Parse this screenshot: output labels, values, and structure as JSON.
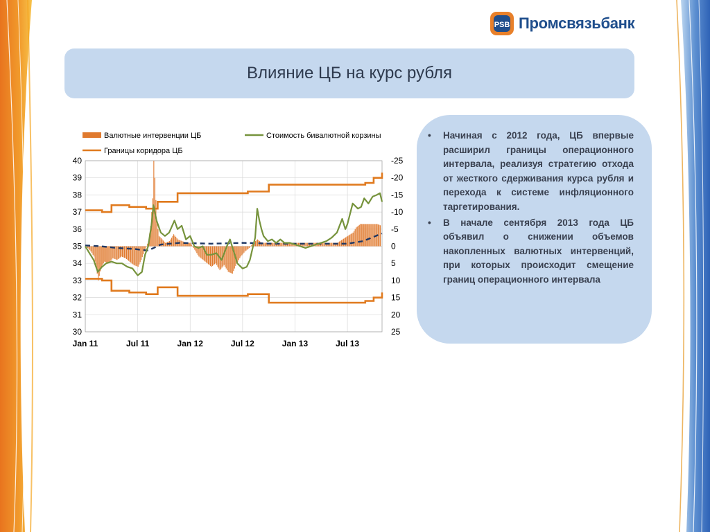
{
  "header": {
    "logo_text": "Промсвязьбанк",
    "logo_icon": "psb-logo-icon",
    "title": "Влияние ЦБ на курс рубля"
  },
  "colors": {
    "title_bg": "#c5d8ee",
    "brand_blue": "#1f4e8c",
    "brand_orange": "#e8802a",
    "interventions": "#e07a2e",
    "basket": "#76933c",
    "corridor": "#e07a1e",
    "center_line": "#1f3864"
  },
  "bullets": [
    "Начиная с 2012 года, ЦБ впервые расширил границы операционного интервала, реализуя стратегию отхода от жесткого сдерживания курса рубля и перехода к системе инфляционного таргетирования.",
    "В начале сентября 2013 года ЦБ объявил о снижении объемов накопленных валютных интервенций, при которых происходит смещение границ операционного интервала"
  ],
  "chart_data": {
    "type": "line",
    "legend": [
      "Валютные интервенции ЦБ",
      "Стоимость бивалютной корзины",
      "Границы коридора ЦБ"
    ],
    "legend_placement": "top",
    "x_tick_labels": [
      "Jan 11",
      "Jul 11",
      "Jan 12",
      "Jul 12",
      "Jan 13",
      "Jul 13"
    ],
    "y_left": {
      "ticks": [
        "40",
        "39",
        "38",
        "37",
        "36",
        "35",
        "34",
        "33",
        "32",
        "31",
        "30"
      ],
      "range": [
        30,
        40
      ]
    },
    "y_right": {
      "ticks": [
        "-25",
        "-20",
        "-15",
        "-10",
        "-5",
        "0",
        "5",
        "10",
        "15",
        "20",
        "25"
      ],
      "range": [
        25,
        -25
      ],
      "inverted": true
    },
    "grid": true,
    "x_range": [
      2011.0,
      2013.83
    ],
    "series": [
      {
        "name": "Стоимость бивалютной корзины",
        "kind": "line",
        "axis": "left",
        "points": [
          [
            2011.0,
            35.0
          ],
          [
            2011.04,
            34.6
          ],
          [
            2011.08,
            34.2
          ],
          [
            2011.12,
            33.5
          ],
          [
            2011.16,
            33.8
          ],
          [
            2011.2,
            34.0
          ],
          [
            2011.25,
            34.1
          ],
          [
            2011.3,
            34.0
          ],
          [
            2011.35,
            34.0
          ],
          [
            2011.4,
            33.8
          ],
          [
            2011.45,
            33.7
          ],
          [
            2011.5,
            33.3
          ],
          [
            2011.54,
            33.5
          ],
          [
            2011.57,
            34.5
          ],
          [
            2011.6,
            35.0
          ],
          [
            2011.63,
            36.2
          ],
          [
            2011.65,
            37.4
          ],
          [
            2011.68,
            36.5
          ],
          [
            2011.72,
            35.8
          ],
          [
            2011.76,
            35.6
          ],
          [
            2011.8,
            35.8
          ],
          [
            2011.85,
            36.5
          ],
          [
            2011.88,
            36.0
          ],
          [
            2011.92,
            36.2
          ],
          [
            2011.96,
            35.4
          ],
          [
            2012.0,
            35.6
          ],
          [
            2012.04,
            35.0
          ],
          [
            2012.08,
            34.9
          ],
          [
            2012.12,
            35.0
          ],
          [
            2012.16,
            34.5
          ],
          [
            2012.2,
            34.5
          ],
          [
            2012.25,
            34.6
          ],
          [
            2012.3,
            34.2
          ],
          [
            2012.35,
            35.0
          ],
          [
            2012.38,
            35.4
          ],
          [
            2012.42,
            34.6
          ],
          [
            2012.45,
            34.0
          ],
          [
            2012.5,
            33.7
          ],
          [
            2012.54,
            33.8
          ],
          [
            2012.57,
            34.2
          ],
          [
            2012.6,
            35.0
          ],
          [
            2012.62,
            35.5
          ],
          [
            2012.64,
            37.2
          ],
          [
            2012.66,
            36.5
          ],
          [
            2012.68,
            36.0
          ],
          [
            2012.7,
            35.6
          ],
          [
            2012.74,
            35.3
          ],
          [
            2012.78,
            35.4
          ],
          [
            2012.82,
            35.2
          ],
          [
            2012.86,
            35.4
          ],
          [
            2012.9,
            35.2
          ],
          [
            2012.95,
            35.2
          ],
          [
            2013.0,
            35.1
          ],
          [
            2013.05,
            35.0
          ],
          [
            2013.1,
            34.9
          ],
          [
            2013.15,
            35.0
          ],
          [
            2013.2,
            35.1
          ],
          [
            2013.25,
            35.2
          ],
          [
            2013.3,
            35.3
          ],
          [
            2013.35,
            35.5
          ],
          [
            2013.4,
            35.8
          ],
          [
            2013.45,
            36.6
          ],
          [
            2013.48,
            36.0
          ],
          [
            2013.5,
            36.3
          ],
          [
            2013.55,
            37.5
          ],
          [
            2013.6,
            37.2
          ],
          [
            2013.63,
            37.3
          ],
          [
            2013.66,
            37.8
          ],
          [
            2013.7,
            37.5
          ],
          [
            2013.74,
            37.9
          ],
          [
            2013.78,
            38.0
          ],
          [
            2013.81,
            38.1
          ],
          [
            2013.83,
            37.6
          ]
        ]
      },
      {
        "name": "Границы коридора ЦБ",
        "kind": "step",
        "axis": "left",
        "role": "upper",
        "points": [
          [
            2011.0,
            37.1
          ],
          [
            2011.16,
            37.0
          ],
          [
            2011.25,
            37.4
          ],
          [
            2011.42,
            37.3
          ],
          [
            2011.58,
            37.2
          ],
          [
            2011.69,
            37.6
          ],
          [
            2011.88,
            38.1
          ],
          [
            2012.25,
            38.1
          ],
          [
            2012.55,
            38.2
          ],
          [
            2012.75,
            38.6
          ],
          [
            2013.0,
            38.6
          ],
          [
            2013.6,
            38.6
          ],
          [
            2013.67,
            38.7
          ],
          [
            2013.75,
            39.0
          ],
          [
            2013.83,
            39.3
          ]
        ]
      },
      {
        "name": "Границы коридора ЦБ",
        "kind": "step",
        "axis": "left",
        "role": "lower",
        "points": [
          [
            2011.0,
            33.1
          ],
          [
            2011.16,
            33.0
          ],
          [
            2011.25,
            32.4
          ],
          [
            2011.42,
            32.3
          ],
          [
            2011.58,
            32.2
          ],
          [
            2011.69,
            32.6
          ],
          [
            2011.88,
            32.1
          ],
          [
            2012.25,
            32.1
          ],
          [
            2012.55,
            32.2
          ],
          [
            2012.75,
            31.7
          ],
          [
            2013.0,
            31.7
          ],
          [
            2013.6,
            31.7
          ],
          [
            2013.67,
            31.8
          ],
          [
            2013.75,
            32.0
          ],
          [
            2013.83,
            32.3
          ]
        ]
      },
      {
        "name": "Центр коридора",
        "kind": "dashed",
        "axis": "left",
        "points": [
          [
            2011.0,
            35.05
          ],
          [
            2011.15,
            35.0
          ],
          [
            2011.3,
            34.9
          ],
          [
            2011.45,
            34.85
          ],
          [
            2011.6,
            34.75
          ],
          [
            2011.72,
            35.1
          ],
          [
            2011.9,
            35.2
          ],
          [
            2012.2,
            35.15
          ],
          [
            2012.5,
            35.2
          ],
          [
            2012.8,
            35.15
          ],
          [
            2013.1,
            35.15
          ],
          [
            2013.5,
            35.15
          ],
          [
            2013.65,
            35.3
          ],
          [
            2013.75,
            35.55
          ],
          [
            2013.83,
            35.75
          ]
        ]
      },
      {
        "name": "Валютные интервенции ЦБ",
        "kind": "bar",
        "axis": "right",
        "points": [
          [
            2011.02,
            0.5
          ],
          [
            2011.05,
            1.5
          ],
          [
            2011.08,
            3.0
          ],
          [
            2011.1,
            6.0
          ],
          [
            2011.12,
            10.0
          ],
          [
            2011.15,
            6.0
          ],
          [
            2011.18,
            4.5
          ],
          [
            2011.22,
            5.0
          ],
          [
            2011.26,
            3.5
          ],
          [
            2011.3,
            4.0
          ],
          [
            2011.34,
            3.0
          ],
          [
            2011.38,
            3.5
          ],
          [
            2011.42,
            4.5
          ],
          [
            2011.46,
            5.5
          ],
          [
            2011.5,
            6.0
          ],
          [
            2011.53,
            4.0
          ],
          [
            2011.56,
            1.5
          ],
          [
            2011.6,
            -1.5
          ],
          [
            2011.62,
            -6.0
          ],
          [
            2011.64,
            -14.0
          ],
          [
            2011.65,
            -25.0
          ],
          [
            2011.66,
            -20.0
          ],
          [
            2011.68,
            -7.0
          ],
          [
            2011.7,
            -3.0
          ],
          [
            2011.73,
            -2.0
          ],
          [
            2011.76,
            -1.0
          ],
          [
            2011.8,
            -1.5
          ],
          [
            2011.84,
            -3.5
          ],
          [
            2011.88,
            -2.0
          ],
          [
            2011.92,
            -1.5
          ],
          [
            2011.96,
            -1.0
          ],
          [
            2012.0,
            -1.0
          ],
          [
            2012.05,
            1.5
          ],
          [
            2012.08,
            3.0
          ],
          [
            2012.12,
            4.0
          ],
          [
            2012.16,
            5.0
          ],
          [
            2012.2,
            6.0
          ],
          [
            2012.24,
            5.0
          ],
          [
            2012.28,
            7.0
          ],
          [
            2012.32,
            5.5
          ],
          [
            2012.36,
            7.5
          ],
          [
            2012.4,
            8.0
          ],
          [
            2012.44,
            5.0
          ],
          [
            2012.48,
            3.0
          ],
          [
            2012.52,
            1.5
          ],
          [
            2012.56,
            0.5
          ],
          [
            2012.6,
            -1.0
          ],
          [
            2012.64,
            -2.0
          ],
          [
            2012.68,
            -1.0
          ],
          [
            2013.4,
            -1.0
          ],
          [
            2013.45,
            -2.0
          ],
          [
            2013.5,
            -3.0
          ],
          [
            2013.55,
            -4.0
          ],
          [
            2013.58,
            -5.5
          ],
          [
            2013.62,
            -6.5
          ],
          [
            2013.66,
            -6.5
          ],
          [
            2013.7,
            -6.5
          ],
          [
            2013.74,
            -6.5
          ],
          [
            2013.78,
            -6.5
          ],
          [
            2013.82,
            -6.0
          ]
        ]
      }
    ]
  }
}
